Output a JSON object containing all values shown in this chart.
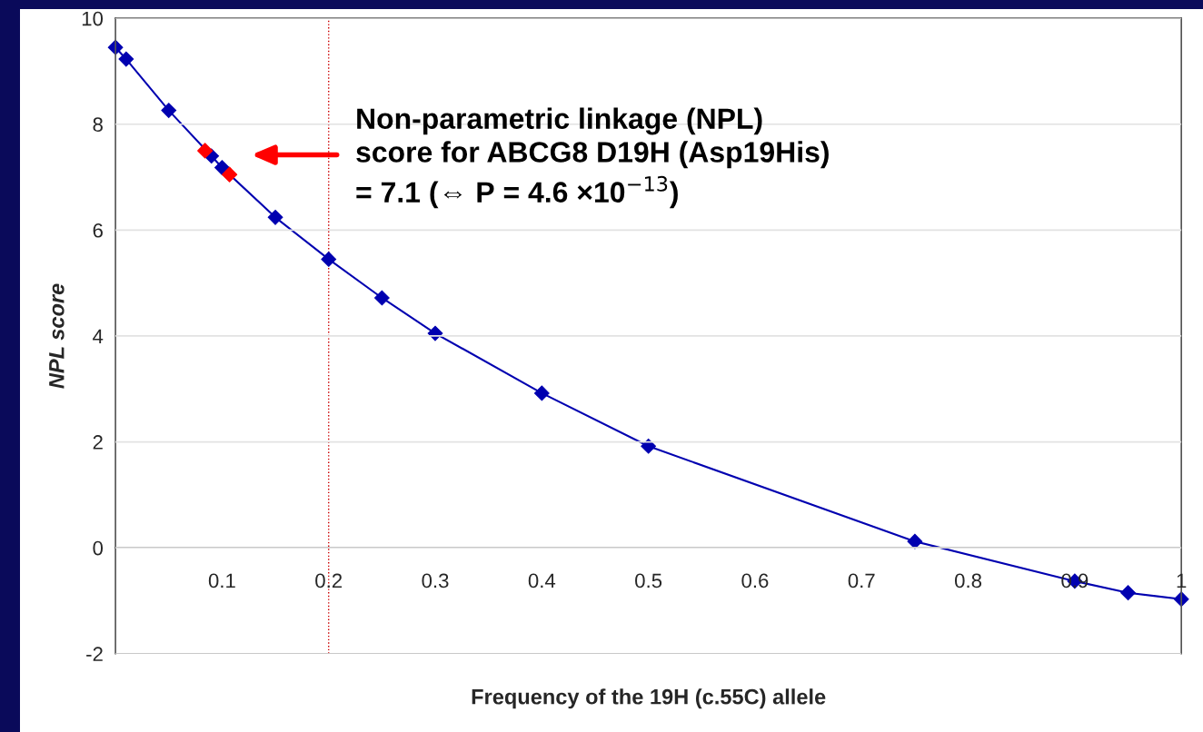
{
  "chart_data": {
    "type": "line",
    "xlabel": "Frequency of the 19H (c.55C) allele",
    "ylabel": "NPL score",
    "xlim": [
      0,
      1.0
    ],
    "ylim": [
      -2,
      10
    ],
    "xticks": [
      {
        "value": 0,
        "label": null
      },
      0.1,
      0.2,
      0.3,
      0.4,
      0.5,
      0.6,
      0.7,
      0.8,
      0.9,
      1
    ],
    "yticks": [
      -2,
      0,
      2,
      4,
      6,
      8,
      10
    ],
    "grid": "y",
    "marker": "diamond",
    "line_style": "solid",
    "series": [
      {
        "color": "#0000b0",
        "x": [
          0.0,
          0.01,
          0.05,
          0.09,
          0.1,
          0.15,
          0.2,
          0.25,
          0.3,
          0.4,
          0.5,
          0.75,
          0.9,
          0.95,
          1.0
        ],
        "values": [
          9.45,
          9.23,
          8.26,
          7.4,
          7.18,
          6.24,
          5.45,
          4.72,
          4.05,
          2.92,
          1.92,
          0.12,
          -0.63,
          -0.85,
          -0.97
        ]
      },
      {
        "type": "scatter",
        "color": "#ff0000",
        "x": [
          0.084,
          0.107
        ],
        "values": [
          7.5,
          7.05
        ]
      }
    ],
    "ref_lines": [
      {
        "axis": "x",
        "value": 0.2,
        "color": "#cc0000",
        "line_style": "dotted"
      }
    ],
    "annotations": [
      "Non-parametric linkage (NPL)\nscore for ABCG8 D19H (Asp19His)\n= 7.1 (⇔ P = 4.6 ×10$^{−13}$)"
    ]
  }
}
